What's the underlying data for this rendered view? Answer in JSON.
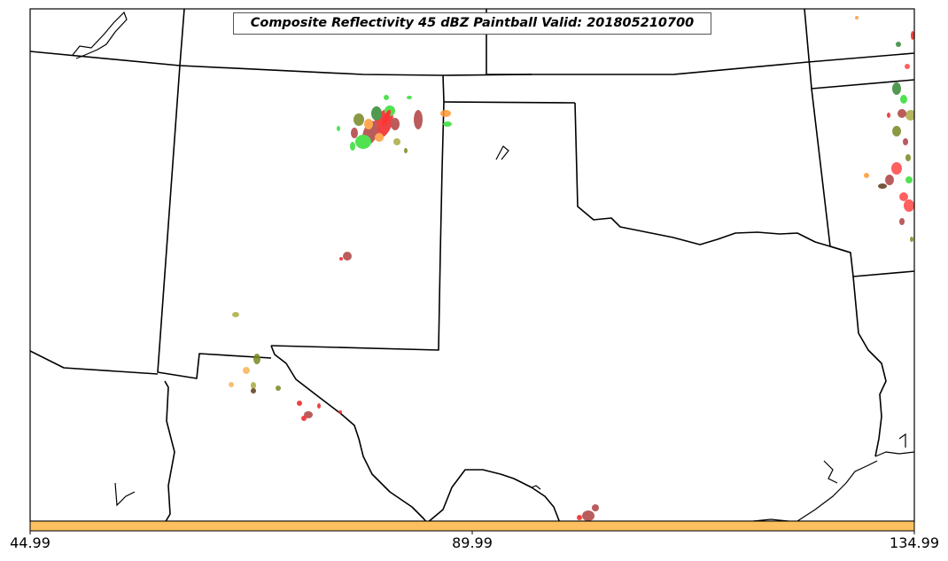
{
  "title": "Composite Reflectivity 45 dBZ Paintball Valid: 201805210700",
  "colorbar": {
    "color": "#fdbf60",
    "tick_labels": [
      "44.99",
      "89.99",
      "134.99"
    ]
  },
  "colors": {
    "red": "#ee2222",
    "bright_red": "#ff4444",
    "dark_red": "#b22222",
    "brown_red": "#b04040",
    "green": "#33dd33",
    "dark_green": "#338833",
    "olive": "#778822",
    "khaki": "#aaaa44",
    "orange": "#ff9933",
    "light_orange": "#f7b45a",
    "dark_brown": "#5a3a1a"
  }
}
